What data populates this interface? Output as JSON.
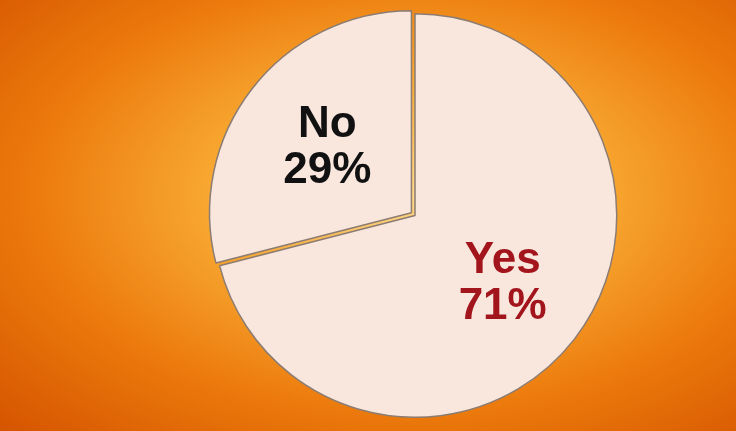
{
  "chart_data": {
    "type": "pie",
    "categories": [
      "Yes",
      "No"
    ],
    "values": [
      71,
      29
    ],
    "value_labels": [
      "71%",
      "29%"
    ],
    "colors": [
      "#f9e7de",
      "#f9e7de"
    ],
    "data_labels": true
  }
}
